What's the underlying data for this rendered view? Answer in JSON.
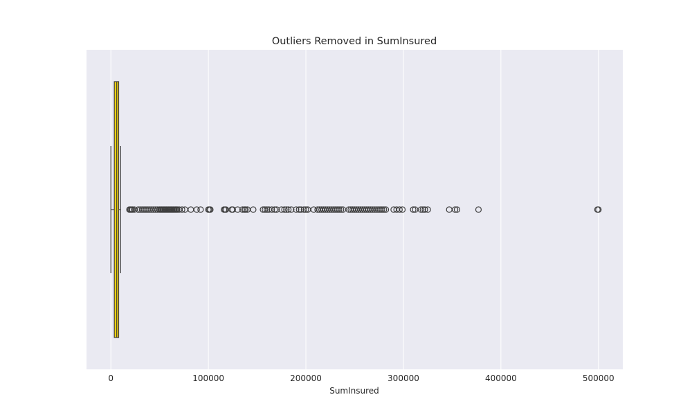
{
  "chart_data": {
    "type": "boxplot",
    "orientation": "horizontal",
    "title": "Outliers Removed in SumInsured",
    "xlabel": "SumInsured",
    "ylabel": "",
    "xlim": [
      -25000,
      525000
    ],
    "xticks": [
      0,
      100000,
      200000,
      300000,
      400000,
      500000
    ],
    "xtick_labels": [
      "0",
      "100000",
      "200000",
      "300000",
      "400000",
      "500000"
    ],
    "grid": true,
    "legend": "none",
    "box": {
      "whisker_low": 0,
      "q1": 3500,
      "median": 6000,
      "q3": 8000,
      "whisker_high": 10000
    },
    "outliers": [
      19000,
      20000,
      21000,
      22000,
      24000,
      28000,
      30000,
      32000,
      34000,
      36000,
      38000,
      40000,
      42000,
      44000,
      46000,
      48000,
      50000,
      51000,
      52000,
      53000,
      54000,
      55000,
      56000,
      57000,
      58000,
      59000,
      60000,
      61000,
      62000,
      63000,
      64000,
      65000,
      66000,
      67000,
      68000,
      70000,
      73000,
      76000,
      82000,
      88000,
      92000,
      100000,
      101000,
      102000,
      116000,
      117000,
      118000,
      124000,
      125000,
      130000,
      135000,
      137000,
      138000,
      140000,
      146000,
      156000,
      158000,
      160000,
      162000,
      165000,
      168000,
      170000,
      175000,
      178000,
      180000,
      182000,
      185000,
      190000,
      193000,
      195000,
      198000,
      200000,
      202000,
      208000,
      212000,
      214000,
      216000,
      218000,
      220000,
      222000,
      224000,
      226000,
      228000,
      230000,
      232000,
      234000,
      236000,
      238000,
      244000,
      246000,
      248000,
      250000,
      252000,
      254000,
      256000,
      258000,
      260000,
      262000,
      264000,
      266000,
      268000,
      270000,
      272000,
      274000,
      276000,
      278000,
      280000,
      282000,
      290000,
      293000,
      296000,
      299000,
      310000,
      312000,
      318000,
      320000,
      322000,
      325000,
      347000,
      353000,
      355000,
      377000,
      499000,
      500000
    ],
    "colors": {
      "box_fill": "#f2d40e",
      "line": "#3f3f3f",
      "background": "#eaeaf2",
      "grid": "#ffffff",
      "page": "#ffffff"
    }
  }
}
